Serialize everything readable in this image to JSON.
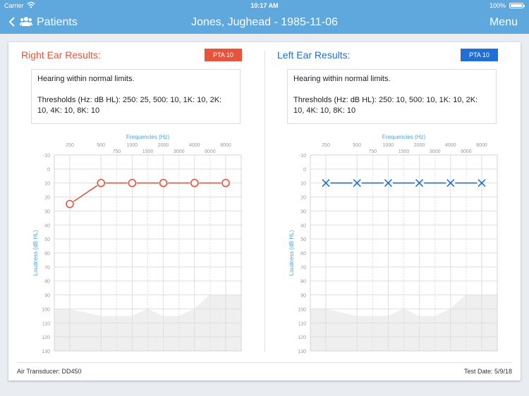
{
  "status_bar": {
    "carrier": "Carrier",
    "time": "10:17 AM",
    "battery": "100%"
  },
  "nav": {
    "back_label": "Patients",
    "title": "Jones, Jughead - 1985-11-06",
    "menu_label": "Menu"
  },
  "colors": {
    "right": "#e8533c",
    "left": "#1f6fd6",
    "axis": "#4aa3df",
    "nav": "#5fa8dd"
  },
  "icons": {
    "back": "chevron-left-icon",
    "patients": "people-icon",
    "wifi": "wifi-icon",
    "battery": "battery-icon"
  },
  "right_ear": {
    "title": "Right Ear Results:",
    "pta_badge": "PTA 10",
    "summary_line1": "Hearing within normal limits.",
    "summary_line2": "Thresholds (Hz: dB HL): 250: 25, 500: 10, 1K: 10, 2K: 10, 4K: 10, 8K: 10"
  },
  "left_ear": {
    "title": "Left Ear Results:",
    "pta_badge": "PTA 10",
    "summary_line1": "Hearing within normal limits.",
    "summary_line2": "Thresholds (Hz: dB HL): 250: 10, 500: 10, 1K: 10, 2K: 10, 4K: 10, 8K: 10"
  },
  "footer": {
    "transducer": "Air Transducer: DD450",
    "test_date": "Test Date: 5/9/18"
  },
  "chart_data": [
    {
      "type": "line",
      "xlabel": "Frequencies (Hz)",
      "ylabel": "Loudness (dB HL)",
      "x_ticks_major": [
        "250",
        "500",
        "1000",
        "2000",
        "4000",
        "8000"
      ],
      "x_ticks_minor": [
        "750",
        "1500",
        "3000",
        "6000"
      ],
      "y_ticks": [
        "-10",
        "0",
        "10",
        "20",
        "30",
        "40",
        "50",
        "60",
        "70",
        "80",
        "90",
        "100",
        "110",
        "120",
        "130"
      ],
      "ylim": [
        -10,
        130
      ],
      "y_inverted": true,
      "series": [
        {
          "x": [
            "250",
            "500",
            "1000",
            "2000",
            "4000",
            "8000"
          ],
          "y": [
            25,
            10,
            10,
            10,
            10,
            10
          ],
          "marker": "circle",
          "color": "#e8533c"
        }
      ]
    },
    {
      "type": "line",
      "xlabel": "Frequencies (Hz)",
      "ylabel": "Loudness (dB HL)",
      "x_ticks_major": [
        "250",
        "500",
        "1000",
        "2000",
        "4000",
        "8000"
      ],
      "x_ticks_minor": [
        "750",
        "1500",
        "3000",
        "6000"
      ],
      "y_ticks": [
        "-10",
        "0",
        "10",
        "20",
        "30",
        "40",
        "50",
        "60",
        "70",
        "80",
        "90",
        "100",
        "110",
        "120",
        "130"
      ],
      "ylim": [
        -10,
        130
      ],
      "y_inverted": true,
      "series": [
        {
          "x": [
            "250",
            "500",
            "1000",
            "2000",
            "4000",
            "8000"
          ],
          "y": [
            10,
            10,
            10,
            10,
            10,
            10
          ],
          "marker": "x",
          "color": "#1f6fd6"
        }
      ]
    }
  ]
}
